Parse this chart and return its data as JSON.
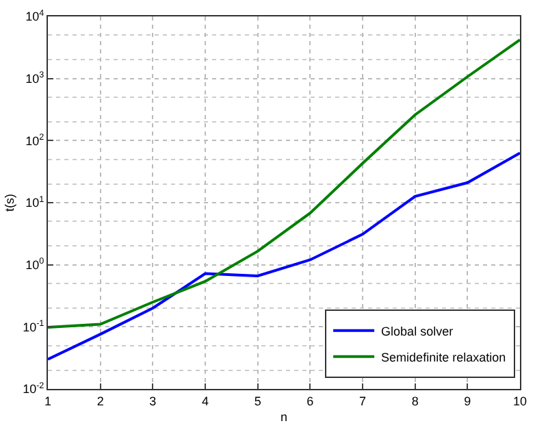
{
  "chart_data": {
    "type": "line",
    "xlabel": "n",
    "ylabel": "t(s)",
    "x": [
      1,
      2,
      3,
      4,
      5,
      6,
      7,
      8,
      9,
      10
    ],
    "series": [
      {
        "name": "Global solver",
        "color": "#0000ff",
        "values": [
          0.03,
          0.076,
          0.2,
          0.72,
          0.66,
          1.2,
          3.1,
          12.6,
          21,
          63
        ]
      },
      {
        "name": "Semidefinite relaxation",
        "color": "#008000",
        "values": [
          0.098,
          0.11,
          0.25,
          0.54,
          1.65,
          6.8,
          43,
          260,
          1070,
          4200
        ]
      }
    ],
    "log": true,
    "xlim": [
      1,
      10
    ],
    "xticks": [
      1,
      2,
      3,
      4,
      5,
      6,
      7,
      8,
      9,
      10
    ],
    "ylim": [
      0.01,
      10000
    ],
    "yticks": [
      {
        "value": 0.01,
        "label": "10$^{-2}$"
      },
      {
        "value": 0.1,
        "label": "10$^{-1}$"
      },
      {
        "value": 1,
        "label": "10$^{0}$"
      },
      {
        "value": 10,
        "label": "10$^{1}$"
      },
      {
        "value": 100,
        "label": "10$^{2}$"
      },
      {
        "value": 1000,
        "label": "10$^{3}$"
      },
      {
        "value": 10000,
        "label": "10$^{4}$"
      }
    ],
    "grid": true,
    "legend": "bottom right",
    "line_style": "solid",
    "marker": "none"
  }
}
